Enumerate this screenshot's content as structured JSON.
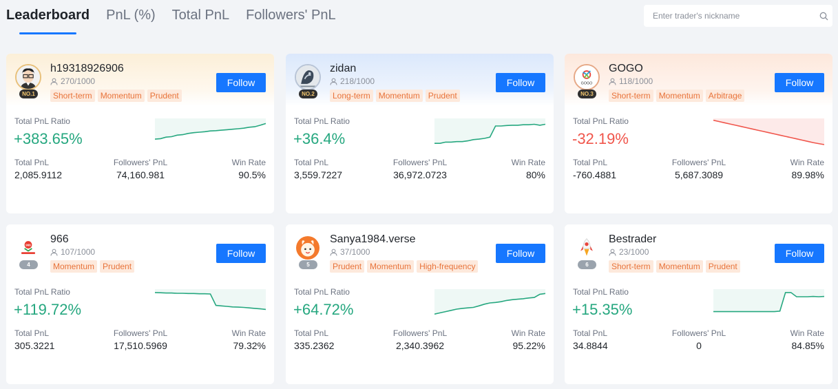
{
  "tabs": [
    {
      "label": "Leaderboard",
      "active": true
    },
    {
      "label": "PnL (%)",
      "active": false
    },
    {
      "label": "Total PnL",
      "active": false
    },
    {
      "label": "Followers' PnL",
      "active": false
    }
  ],
  "search": {
    "placeholder": "Enter trader's nickname",
    "icon": "search-icon"
  },
  "labels": {
    "total_pnl_ratio": "Total PnL Ratio",
    "total_pnl": "Total PnL",
    "followers_pnl": "Followers' PnL",
    "win_rate": "Win Rate",
    "follow": "Follow"
  },
  "colors": {
    "accent": "#1677ff",
    "positive": "#25a77f",
    "negative": "#f0554b",
    "tag_text": "#e8733a",
    "tag_bg": "#fde9dc"
  },
  "traders": [
    {
      "rank": "NO.1",
      "name": "h19318926906",
      "followers": "270/1000",
      "tags": [
        "Short-term",
        "Momentum",
        "Prudent"
      ],
      "pnl_ratio": "+383.65%",
      "trend": "positive",
      "total_pnl": "2,085.9112",
      "followers_pnl": "74,160.981",
      "win_rate": "90.5%",
      "avatar": "man-glasses-avatar",
      "spark": [
        0.22,
        0.24,
        0.3,
        0.32,
        0.38,
        0.4,
        0.45,
        0.48,
        0.5,
        0.52,
        0.55,
        0.56,
        0.58,
        0.6,
        0.62,
        0.64,
        0.66,
        0.7,
        0.72,
        0.78,
        0.85
      ]
    },
    {
      "rank": "NO.2",
      "name": "zidan",
      "followers": "218/1000",
      "tags": [
        "Long-term",
        "Momentum",
        "Prudent"
      ],
      "pnl_ratio": "+36.4%",
      "trend": "positive",
      "total_pnl": "3,559.7227",
      "followers_pnl": "36,972.0723",
      "win_rate": "80%",
      "avatar": "dragon-art-avatar",
      "spark": [
        0.05,
        0.05,
        0.1,
        0.1,
        0.12,
        0.12,
        0.15,
        0.2,
        0.22,
        0.25,
        0.3,
        0.75,
        0.75,
        0.77,
        0.78,
        0.78,
        0.8,
        0.8,
        0.82,
        0.78,
        0.82
      ]
    },
    {
      "rank": "NO.3",
      "name": "GOGO",
      "followers": "118/1000",
      "tags": [
        "Short-term",
        "Momentum",
        "Arbitrage"
      ],
      "pnl_ratio": "-32.19%",
      "trend": "negative",
      "total_pnl": "-760.4881",
      "followers_pnl": "5,687.3089",
      "win_rate": "89.98%",
      "avatar": "gogo-logo-avatar",
      "spark": [
        0.98,
        0.93,
        0.88,
        0.83,
        0.78,
        0.73,
        0.68,
        0.63,
        0.58,
        0.53,
        0.48,
        0.43,
        0.38,
        0.33,
        0.28,
        0.23,
        0.18,
        0.13,
        0.08,
        0.04,
        0.0
      ]
    },
    {
      "rank": "4",
      "name": "966",
      "followers": "107/1000",
      "tags": [
        "Momentum",
        "Prudent"
      ],
      "pnl_ratio": "+119.72%",
      "trend": "positive",
      "total_pnl": "305.3221",
      "followers_pnl": "17,510.5969",
      "win_rate": "79.32%",
      "avatar": "966-logo-avatar",
      "spark": [
        0.92,
        0.91,
        0.9,
        0.9,
        0.89,
        0.89,
        0.88,
        0.88,
        0.87,
        0.87,
        0.86,
        0.4,
        0.38,
        0.36,
        0.34,
        0.33,
        0.32,
        0.3,
        0.28,
        0.26,
        0.24
      ]
    },
    {
      "rank": "5",
      "name": "Sanya1984.verse",
      "followers": "37/1000",
      "tags": [
        "Prudent",
        "Momentum",
        "High-frequency"
      ],
      "pnl_ratio": "+64.72%",
      "trend": "positive",
      "total_pnl": "335.2362",
      "followers_pnl": "2,340.3962",
      "win_rate": "95.22%",
      "avatar": "cartoon-avatar",
      "spark": [
        0.05,
        0.1,
        0.15,
        0.2,
        0.25,
        0.28,
        0.3,
        0.32,
        0.38,
        0.45,
        0.5,
        0.52,
        0.55,
        0.6,
        0.63,
        0.65,
        0.67,
        0.7,
        0.72,
        0.85,
        0.88
      ]
    },
    {
      "rank": "6",
      "name": "Bestrader",
      "followers": "23/1000",
      "tags": [
        "Short-term",
        "Momentum",
        "Prudent"
      ],
      "pnl_ratio": "+15.35%",
      "trend": "positive",
      "total_pnl": "34.8844",
      "followers_pnl": "0",
      "win_rate": "84.85%",
      "avatar": "rocket-avatar",
      "spark": [
        0.15,
        0.15,
        0.15,
        0.15,
        0.15,
        0.15,
        0.15,
        0.15,
        0.15,
        0.15,
        0.15,
        0.15,
        0.17,
        0.92,
        0.92,
        0.75,
        0.75,
        0.75,
        0.76,
        0.75,
        0.76
      ]
    }
  ]
}
